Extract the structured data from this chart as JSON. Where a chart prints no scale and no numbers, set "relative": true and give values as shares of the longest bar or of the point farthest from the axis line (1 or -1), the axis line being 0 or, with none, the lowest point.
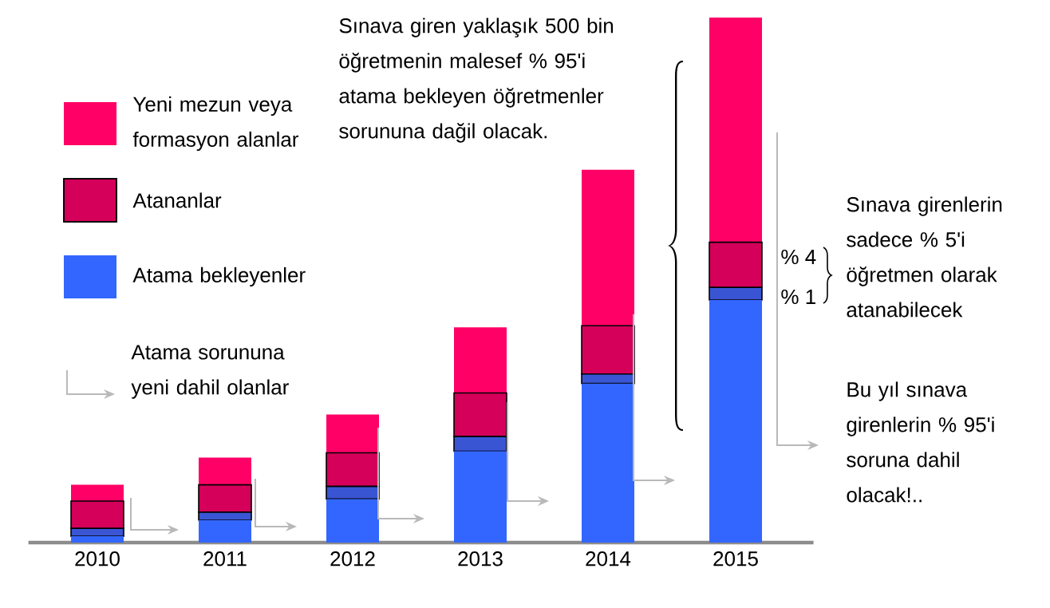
{
  "chart_data": {
    "type": "bar",
    "stacked": true,
    "relative": true,
    "legend": "top left",
    "categories": [
      "2010",
      "2011",
      "2012",
      "2013",
      "2014",
      "2015"
    ],
    "series": [
      {
        "name": "Atama bekleyenler",
        "color": "#3366ff",
        "values": [
          0.012,
          0.043,
          0.083,
          0.174,
          0.303,
          0.462
        ]
      },
      {
        "color": "#3a55d4",
        "values": [
          0.015,
          0.015,
          0.024,
          0.028,
          0.018,
          0.024
        ]
      },
      {
        "name": "Atananlar",
        "color": "#d4005a",
        "values": [
          0.052,
          0.052,
          0.064,
          0.083,
          0.092,
          0.086
        ]
      },
      {
        "name": "Yeni mezun veya formasyon alanlar",
        "color": "#ff0066",
        "values": [
          0.031,
          0.052,
          0.073,
          0.125,
          0.297,
          0.428
        ]
      }
    ],
    "annotations": [
      "Sınava giren yaklaşık 500 bin öğretmenin malesef  % 95'i atama bekleyen öğretmenler sorununa dağil olacak.",
      "% 4",
      "% 1",
      "Sınava girenlerin sadece  % 5'i öğretmen olarak atanabilecek",
      "Bu yıl sınava girenlerin % 95'i soruna dahil olacak!..",
      "Atama sorununa yeni dahil olanlar"
    ]
  }
}
